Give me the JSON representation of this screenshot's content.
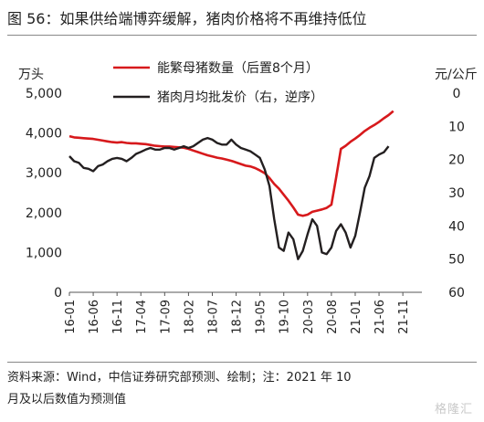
{
  "figure": {
    "title": "图 56：如果供给端博弈缓解，猪肉价格将不再维持低位",
    "source_line_1": "资料来源：Wind，中信证券研究部预测、绘制；注：2021 年 10",
    "source_line_2": "月及以后数值为预测值",
    "watermark": "格隆汇"
  },
  "chart_data": {
    "type": "line",
    "left_unit": "万头",
    "right_unit": "元/公斤",
    "left_ylim": [
      0,
      5000
    ],
    "left_ticks": [
      "0",
      "1,000",
      "2,000",
      "3,000",
      "4,000",
      "5,000"
    ],
    "right_ylim": [
      0,
      60
    ],
    "right_inverted": true,
    "right_ticks": [
      "0",
      "10",
      "20",
      "30",
      "40",
      "50",
      "60"
    ],
    "x_tick_labels": [
      "16-01",
      "16-06",
      "16-11",
      "17-04",
      "17-09",
      "18-02",
      "18-07",
      "18-12",
      "19-05",
      "19-10",
      "20-03",
      "20-08",
      "21-01",
      "21-06",
      "21-11"
    ],
    "x_start": "2016-01",
    "x_end": "2022-03",
    "legend": "top",
    "grid": false,
    "series": [
      {
        "name": "能繁母猪数量（后置8个月）",
        "axis": "left",
        "color": "#d7191c",
        "values": [
          3920,
          3890,
          3880,
          3870,
          3860,
          3850,
          3830,
          3810,
          3790,
          3770,
          3760,
          3770,
          3750,
          3740,
          3740,
          3730,
          3720,
          3700,
          3680,
          3670,
          3660,
          3660,
          3650,
          3640,
          3630,
          3600,
          3560,
          3520,
          3480,
          3440,
          3410,
          3380,
          3360,
          3330,
          3300,
          3260,
          3220,
          3180,
          3160,
          3120,
          3060,
          2990,
          2870,
          2720,
          2600,
          2450,
          2300,
          2130,
          1950,
          1920,
          1950,
          2020,
          2050,
          2080,
          2120,
          2200,
          2880,
          3600,
          3680,
          3780,
          3860,
          3950,
          4050,
          4130,
          4200,
          4280,
          4370,
          4450,
          4550
        ]
      },
      {
        "name": "猪肉月均批发价（右，逆序）",
        "axis": "right",
        "color": "#231f20",
        "values": [
          19.0,
          20.5,
          21.0,
          22.5,
          22.8,
          23.5,
          22.0,
          21.5,
          20.5,
          19.8,
          19.5,
          19.8,
          20.5,
          19.5,
          18.3,
          17.7,
          17.0,
          16.5,
          17.0,
          17.0,
          16.5,
          16.5,
          17.0,
          16.5,
          16.0,
          16.5,
          16.0,
          15.0,
          14.0,
          13.5,
          14.0,
          15.0,
          15.5,
          15.5,
          14.0,
          15.5,
          16.5,
          17.0,
          17.5,
          18.5,
          19.5,
          23.0,
          28.0,
          38.0,
          46.5,
          47.5,
          42.0,
          44.0,
          50.0,
          47.5,
          42.5,
          38.0,
          40.0,
          48.0,
          48.5,
          46.5,
          41.5,
          39.5,
          42.0,
          46.5,
          43.0,
          36.0,
          28.5,
          25.0,
          19.5,
          18.5,
          17.8,
          16.0
        ]
      }
    ]
  }
}
